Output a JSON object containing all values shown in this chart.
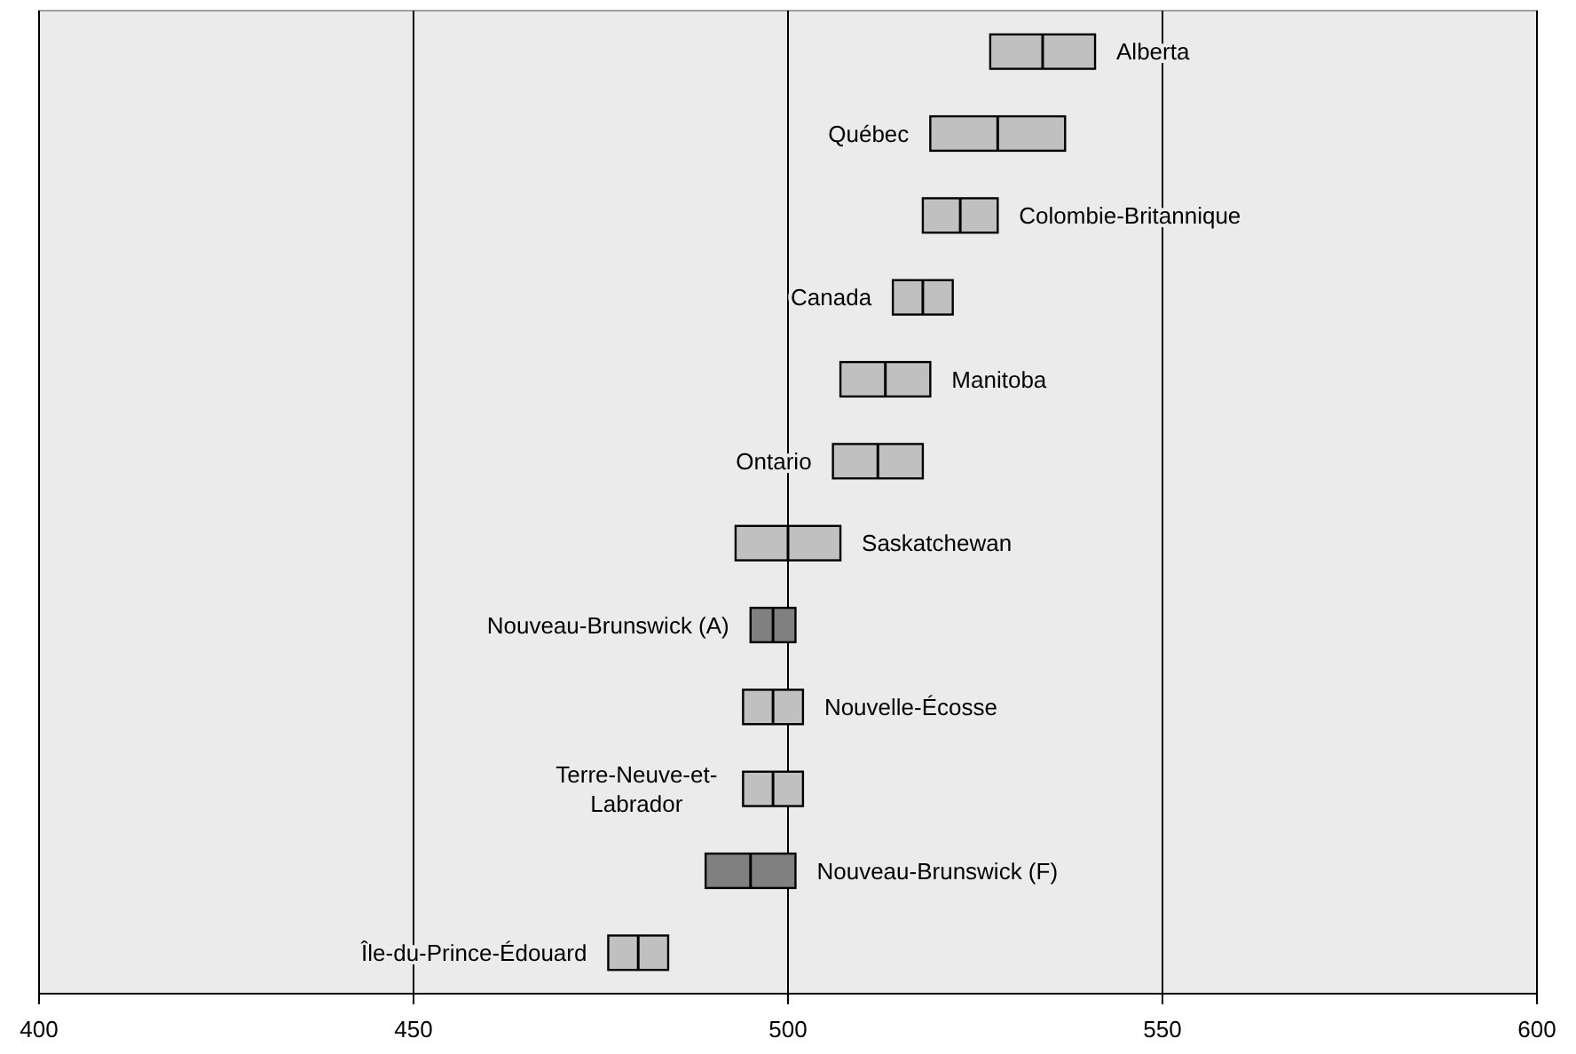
{
  "chart_data": {
    "type": "box",
    "orientation": "horizontal",
    "categories": [
      "Alberta",
      "Québec",
      "Colombie-Britannique",
      "Canada",
      "Manitoba",
      "Ontario",
      "Saskatchewan",
      "Nouveau-Brunswick (A)",
      "Nouvelle-Écosse",
      "Terre-Neuve-et-Labrador",
      "Nouveau-Brunswick (F)",
      "Île-du-Prince-Édouard"
    ],
    "boxes": [
      {
        "low": 527,
        "q1": 527,
        "median": 534,
        "q3": 541,
        "high": 541
      },
      {
        "low": 519,
        "q1": 519,
        "median": 528,
        "q3": 537,
        "high": 537
      },
      {
        "low": 518,
        "q1": 518,
        "median": 523,
        "q3": 528,
        "high": 528
      },
      {
        "low": 514,
        "q1": 514,
        "median": 518,
        "q3": 522,
        "high": 522
      },
      {
        "low": 507,
        "q1": 507,
        "median": 513,
        "q3": 519,
        "high": 519
      },
      {
        "low": 506,
        "q1": 506,
        "median": 512,
        "q3": 518,
        "high": 518
      },
      {
        "low": 493,
        "q1": 493,
        "median": 500,
        "q3": 507,
        "high": 507
      },
      {
        "low": 495,
        "q1": 495,
        "median": 498,
        "q3": 501,
        "high": 501
      },
      {
        "low": 494,
        "q1": 494,
        "median": 498,
        "q3": 502,
        "high": 502
      },
      {
        "low": 494,
        "q1": 494,
        "median": 498,
        "q3": 502,
        "high": 502
      },
      {
        "low": 489,
        "q1": 489,
        "median": 495,
        "q3": 501,
        "high": 501
      },
      {
        "low": 476,
        "q1": 476,
        "median": 480,
        "q3": 484,
        "high": 484
      }
    ],
    "colors": [
      "#c0c0c0",
      "#c0c0c0",
      "#c0c0c0",
      "#c0c0c0",
      "#c0c0c0",
      "#c0c0c0",
      "#c0c0c0",
      "#808080",
      "#c0c0c0",
      "#c0c0c0",
      "#808080",
      "#c0c0c0"
    ],
    "xlim": [
      400,
      600
    ],
    "xticks": [
      400,
      450,
      500,
      550,
      600
    ],
    "grid": "x"
  }
}
